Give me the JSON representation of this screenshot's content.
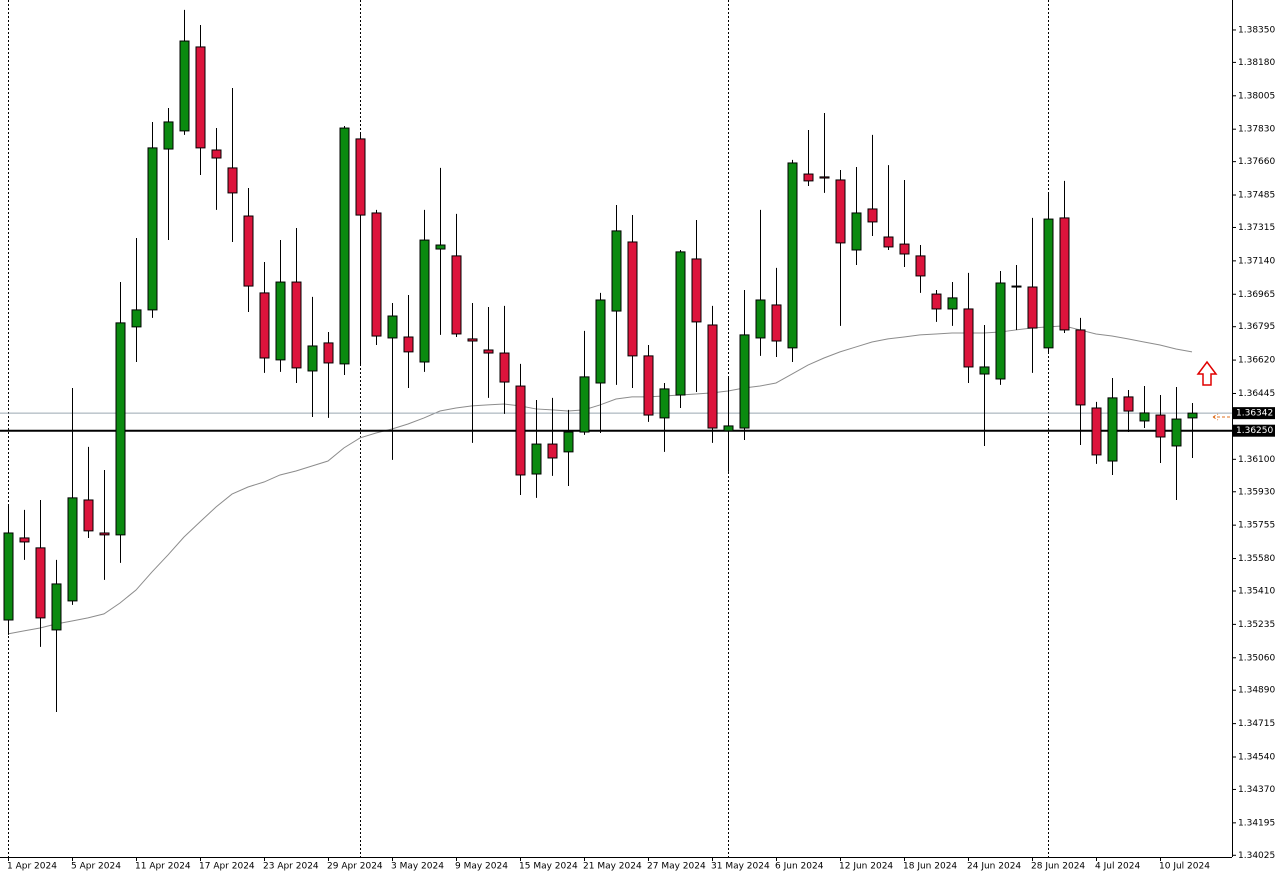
{
  "chart_data": {
    "type": "candlestick",
    "categories": [
      "1 Apr 2024",
      null,
      null,
      null,
      "5 Apr 2024",
      null,
      null,
      null,
      "11 Apr 2024",
      null,
      null,
      null,
      "17 Apr 2024",
      null,
      null,
      null,
      "23 Apr 2024",
      null,
      null,
      null,
      "29 Apr 2024",
      null,
      null,
      null,
      "3 May 2024",
      null,
      null,
      null,
      "9 May 2024",
      null,
      null,
      null,
      "15 May 2024",
      null,
      null,
      null,
      "21 May 2024",
      null,
      null,
      null,
      "27 May 2024",
      null,
      null,
      null,
      "31 May 2024",
      null,
      null,
      null,
      "6 Jun 2024",
      null,
      null,
      null,
      "12 Jun 2024",
      null,
      null,
      null,
      "18 Jun 2024",
      null,
      null,
      null,
      "24 Jun 2024",
      null,
      null,
      null,
      "28 Jun 2024",
      null,
      null,
      null,
      "4 Jul 2024",
      null,
      null,
      null,
      "10 Jul 2024",
      null,
      null
    ],
    "open": [
      1.35258,
      1.35688,
      1.35636,
      1.35206,
      1.35358,
      1.35887,
      1.35714,
      1.35704,
      1.36794,
      1.36883,
      1.37726,
      1.37821,
      1.38261,
      1.37721,
      1.37627,
      1.37375,
      1.36972,
      1.36621,
      1.37029,
      1.36563,
      1.3671,
      1.366,
      1.37779,
      1.37391,
      1.36736,
      1.36741,
      1.3661,
      1.37202,
      1.37166,
      1.36731,
      1.36673,
      1.36657,
      1.36484,
      1.36023,
      1.3618,
      1.36139,
      1.36243,
      1.365,
      1.36877,
      1.37239,
      1.36642,
      1.36317,
      1.36437,
      1.3715,
      1.36804,
      1.36249,
      1.36264,
      1.36736,
      1.36909,
      1.36684,
      1.37595,
      1.3758,
      1.37564,
      1.37197,
      1.37412,
      1.37265,
      1.37228,
      1.37166,
      1.36966,
      1.36888,
      1.36888,
      1.36547,
      1.36521,
      1.37008,
      1.37003,
      1.36684,
      1.37365,
      1.36778,
      1.36369,
      1.36091,
      1.36427,
      1.36301,
      1.36332,
      1.3617,
      1.36317
    ],
    "high": [
      1.35861,
      1.35835,
      1.35887,
      1.35573,
      1.36474,
      1.36165,
      1.36044,
      1.37029,
      1.3726,
      1.37868,
      1.37941,
      1.38455,
      1.38376,
      1.37836,
      1.38046,
      1.37522,
      1.37134,
      1.37249,
      1.37312,
      1.36951,
      1.36767,
      1.37847,
      1.37815,
      1.37407,
      1.36919,
      1.36961,
      1.37407,
      1.37627,
      1.37386,
      1.36919,
      1.36898,
      1.36904,
      1.366,
      1.36411,
      1.36422,
      1.36359,
      1.36773,
      1.36972,
      1.37433,
      1.3738,
      1.36699,
      1.365,
      1.37197,
      1.37354,
      1.36904,
      1.36526,
      1.36987,
      1.37407,
      1.37103,
      1.37669,
      1.37826,
      1.37915,
      1.37616,
      1.37632,
      1.378,
      1.37642,
      1.37564,
      1.37223,
      1.36987,
      1.37029,
      1.37077,
      1.36804,
      1.37087,
      1.37118,
      1.37365,
      1.37501,
      1.37559,
      1.36841,
      1.36401,
      1.36526,
      1.36463,
      1.36484,
      1.36437,
      1.36479,
      1.36395
    ],
    "low": [
      1.3518,
      1.35573,
      1.35117,
      1.34776,
      1.35337,
      1.35688,
      1.35468,
      1.35557,
      1.3661,
      1.36841,
      1.37249,
      1.378,
      1.3759,
      1.37407,
      1.37239,
      1.36872,
      1.36553,
      1.36558,
      1.365,
      1.36322,
      1.36317,
      1.36542,
      1.36594,
      1.36699,
      1.36097,
      1.36474,
      1.36558,
      1.36752,
      1.36741,
      1.36186,
      1.36422,
      1.36338,
      1.35913,
      1.35898,
      1.36013,
      1.3596,
      1.36228,
      1.36238,
      1.3649,
      1.36474,
      1.36296,
      1.36139,
      1.36369,
      1.36453,
      1.36186,
      1.36034,
      1.36201,
      1.36642,
      1.36636,
      1.3661,
      1.37532,
      1.37496,
      1.36799,
      1.37118,
      1.3727,
      1.37197,
      1.37108,
      1.36972,
      1.3682,
      1.36799,
      1.365,
      1.3617,
      1.3649,
      1.36778,
      1.36553,
      1.36657,
      1.36762,
      1.36175,
      1.36076,
      1.36018,
      1.36243,
      1.36264,
      1.36081,
      1.35887,
      1.36107
    ],
    "close": [
      1.35714,
      1.35667,
      1.35269,
      1.35447,
      1.35898,
      1.35725,
      1.35704,
      1.36815,
      1.36883,
      1.37732,
      1.37868,
      1.38292,
      1.37732,
      1.37679,
      1.37496,
      1.37008,
      1.36631,
      1.37029,
      1.36579,
      1.36694,
      1.36605,
      1.37836,
      1.3738,
      1.36746,
      1.36851,
      1.36663,
      1.37249,
      1.37223,
      1.36757,
      1.3672,
      1.36657,
      1.36505,
      1.36018,
      1.3618,
      1.36107,
      1.36243,
      1.36532,
      1.36935,
      1.37297,
      1.36642,
      1.36332,
      1.36469,
      1.37187,
      1.3682,
      1.36264,
      1.36275,
      1.36752,
      1.36935,
      1.3672,
      1.37653,
      1.37559,
      1.37574,
      1.37234,
      1.37391,
      1.37344,
      1.37213,
      1.37176,
      1.37061,
      1.36888,
      1.36946,
      1.36584,
      1.36584,
      1.37024,
      1.37003,
      1.36788,
      1.37359,
      1.36778,
      1.36385,
      1.36123,
      1.36422,
      1.36353,
      1.36343,
      1.36217,
      1.36311,
      1.36342
    ],
    "moving_average": [
      1.35185,
      1.35201,
      1.35216,
      1.35237,
      1.35253,
      1.35269,
      1.3529,
      1.35347,
      1.35415,
      1.3551,
      1.35599,
      1.35693,
      1.35772,
      1.3585,
      1.35918,
      1.35955,
      1.35981,
      1.36018,
      1.36039,
      1.36065,
      1.36091,
      1.3616,
      1.36212,
      1.36238,
      1.36259,
      1.36285,
      1.36317,
      1.36353,
      1.36369,
      1.3638,
      1.36385,
      1.3639,
      1.3638,
      1.36364,
      1.36359,
      1.36353,
      1.36359,
      1.36385,
      1.36416,
      1.36427,
      1.36427,
      1.36432,
      1.36437,
      1.36442,
      1.36448,
      1.36458,
      1.36474,
      1.36484,
      1.365,
      1.36547,
      1.36594,
      1.36631,
      1.36663,
      1.36689,
      1.36715,
      1.36731,
      1.36741,
      1.36752,
      1.36757,
      1.36762,
      1.36762,
      1.36762,
      1.36767,
      1.36778,
      1.36788,
      1.36794,
      1.36799,
      1.36778,
      1.36757,
      1.36746,
      1.36731,
      1.36715,
      1.36699,
      1.36678,
      1.36663
    ],
    "up_color": "#0b8a10",
    "down_color": "#dc143c",
    "ma_color": "#8c8c8c",
    "separators": [
      0,
      22,
      45,
      65
    ],
    "bid_line": {
      "value": 1.36342,
      "label": "1.36342",
      "color": "#9aa6b0"
    },
    "horizontal_line": {
      "value": 1.3625,
      "label": "1.36250",
      "color": "#000000"
    },
    "ylim": [
      1.34016,
      1.38507
    ],
    "yticks": [
      {
        "value": 1.3835,
        "label": "1.38350"
      },
      {
        "value": 1.3818,
        "label": "1.38180"
      },
      1.38005,
      {
        "value": 1.3783,
        "label": "1.37830"
      },
      {
        "value": 1.3766,
        "label": "1.37660"
      },
      1.37485,
      1.37315,
      {
        "value": 1.3714,
        "label": "1.37140"
      },
      1.36965,
      1.36795,
      {
        "value": 1.3662,
        "label": "1.36620"
      },
      1.36445,
      {
        "value": 1.361,
        "label": "1.36100"
      },
      {
        "value": 1.3593,
        "label": "1.35930"
      },
      1.35755,
      {
        "value": 1.3558,
        "label": "1.35580"
      },
      {
        "value": 1.3541,
        "label": "1.35410"
      },
      1.35235,
      {
        "value": 1.3506,
        "label": "1.35060"
      },
      {
        "value": 1.3489,
        "label": "1.34890"
      },
      1.34715,
      {
        "value": 1.3454,
        "label": "1.34540"
      },
      {
        "value": 1.3437,
        "label": "1.34370"
      },
      1.34195,
      1.34025
    ]
  }
}
